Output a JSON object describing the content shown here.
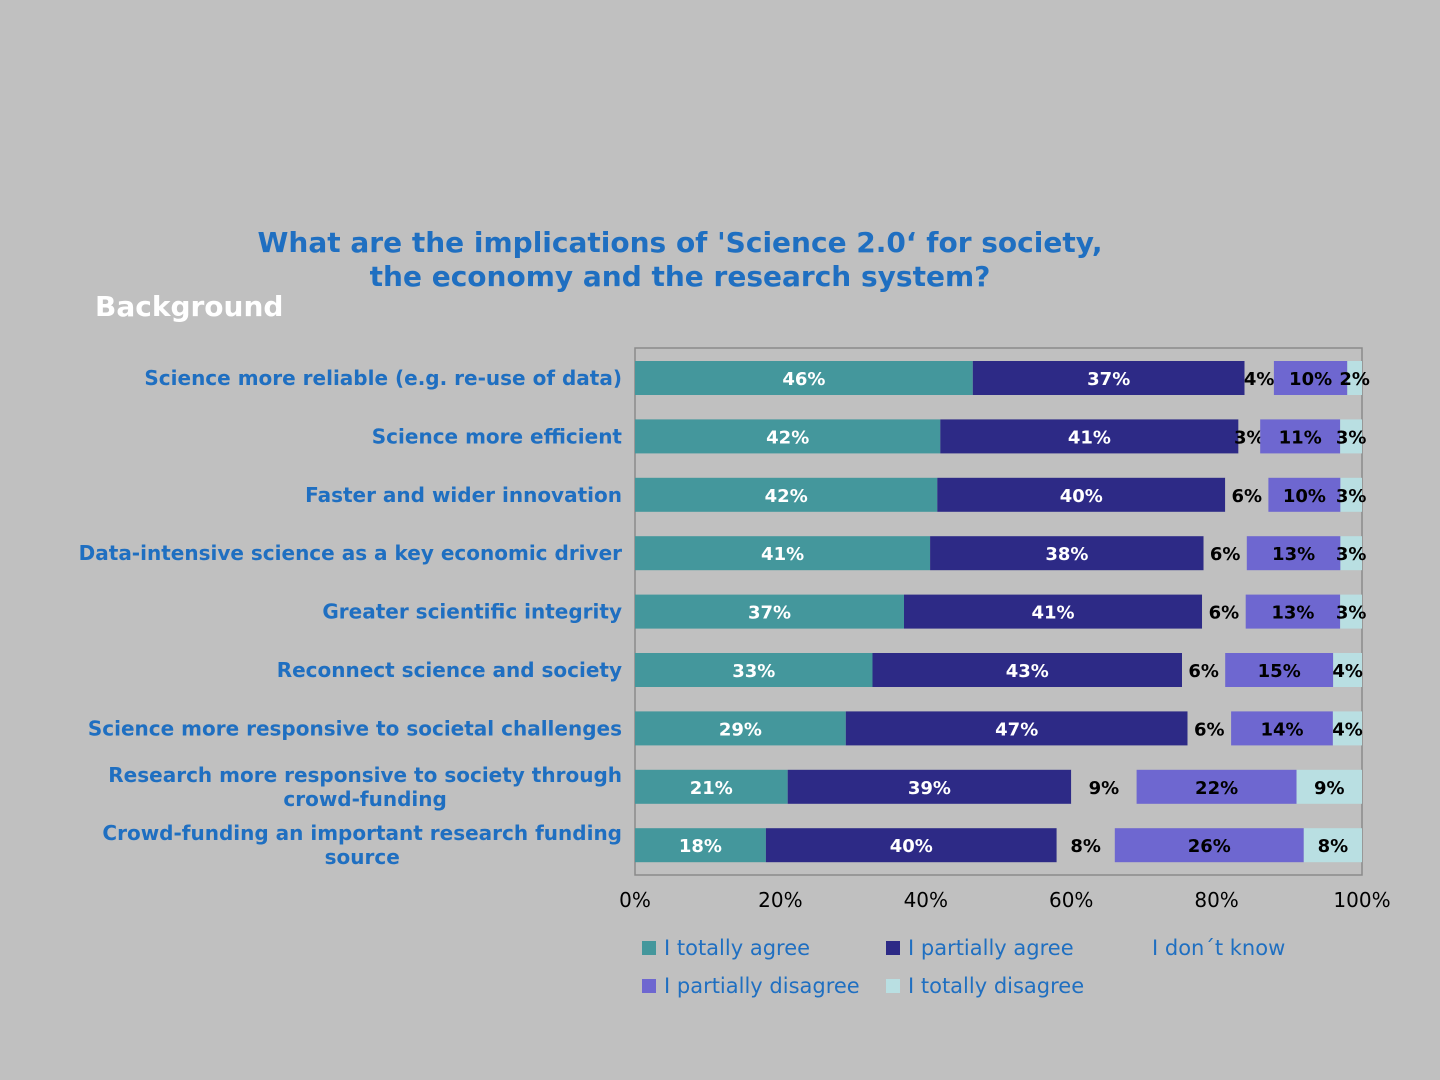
{
  "page": {
    "title_line1": "What are the implications of 'Science 2.0‘ for society,",
    "title_line2": "the economy and the research system?",
    "subtitle": "Background"
  },
  "colors": {
    "background": "#c0c0c0",
    "title": "#1f6fc1",
    "category_label": "#1f6fc1",
    "series": [
      "#44979c",
      "#2d2a86",
      "#c0c0c0",
      "#6e67d0",
      "#b9dfe2"
    ]
  },
  "chart_data": {
    "type": "bar",
    "orientation": "horizontal",
    "stacked": true,
    "title": "What are the implications of 'Science 2.0‘ for society, the economy and the research system?",
    "categories": [
      "Science more reliable (e.g. re-use of data)",
      "Science more efficient",
      "Faster and wider innovation",
      "Data-intensive science as a key economic driver",
      "Greater scientific integrity",
      "Reconnect science and society",
      "Science more responsive to societal challenges",
      "Research more responsive to society through crowd-funding",
      "Crowd-funding an important research funding source"
    ],
    "category_label_lines": [
      [
        "Science more reliable (e.g. re-use of data)"
      ],
      [
        "Science more efficient"
      ],
      [
        "Faster and wider innovation"
      ],
      [
        "Data-intensive science as a key economic driver"
      ],
      [
        "Greater scientific integrity"
      ],
      [
        "Reconnect science and society"
      ],
      [
        "Science more responsive to societal challenges"
      ],
      [
        "Research more responsive to society through",
        "crowd-funding"
      ],
      [
        "Crowd-funding an important research funding",
        "source"
      ]
    ],
    "series": [
      {
        "name": "I totally agree",
        "values": [
          46,
          42,
          42,
          41,
          37,
          33,
          29,
          21,
          18
        ]
      },
      {
        "name": "I partially agree",
        "values": [
          37,
          41,
          40,
          38,
          41,
          43,
          47,
          39,
          40
        ]
      },
      {
        "name": "I don´t know",
        "values": [
          4,
          3,
          6,
          6,
          6,
          6,
          6,
          9,
          8
        ]
      },
      {
        "name": "I partially disagree",
        "values": [
          10,
          11,
          10,
          13,
          13,
          15,
          14,
          22,
          26
        ]
      },
      {
        "name": "I totally disagree",
        "values": [
          2,
          3,
          3,
          3,
          3,
          4,
          4,
          9,
          8
        ]
      }
    ],
    "value_suffix": "%",
    "xlim": [
      0,
      100
    ],
    "xticks": [
      "0%",
      "20%",
      "40%",
      "60%",
      "80%",
      "100%"
    ],
    "legend_position": "bottom",
    "grid": false
  }
}
